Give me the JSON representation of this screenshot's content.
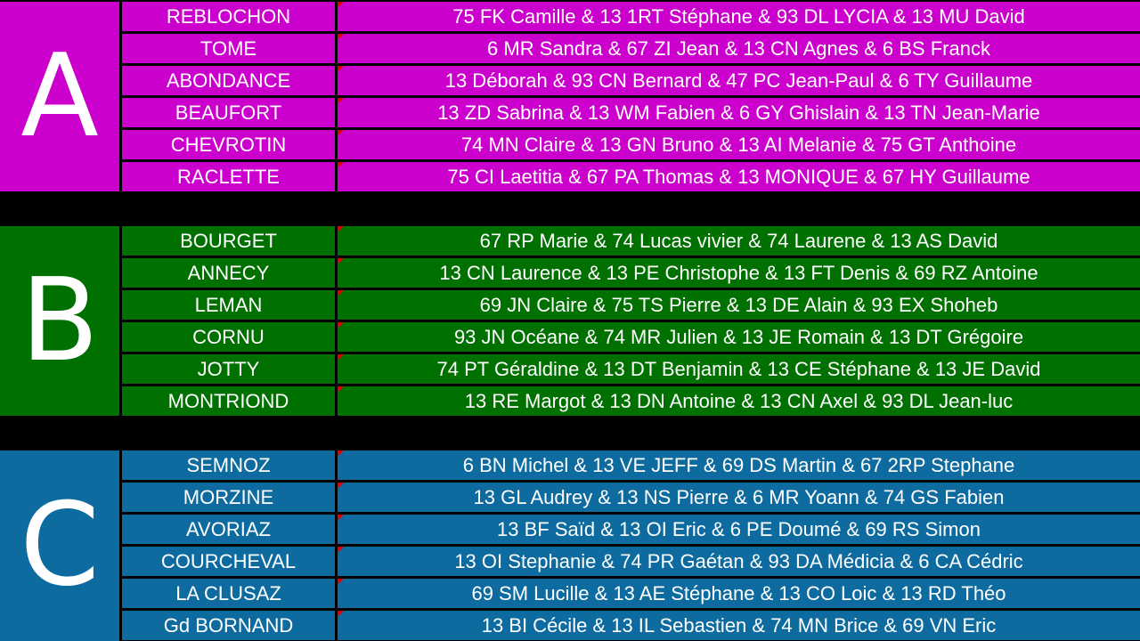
{
  "groups": [
    {
      "letter": "A",
      "color": "#cc00cc",
      "rows": [
        {
          "name": "REBLOCHON",
          "teams": "75 FK Camille & 13 1RT Stéphane & 93 DL LYCIA & 13 MU David"
        },
        {
          "name": "TOME",
          "teams": "6 MR Sandra & 67 ZI Jean & 13 CN Agnes & 6 BS Franck"
        },
        {
          "name": "ABONDANCE",
          "teams": "13 Déborah & 93 CN Bernard & 47 PC Jean-Paul & 6 TY Guillaume"
        },
        {
          "name": "BEAUFORT",
          "teams": "13 ZD Sabrina & 13 WM Fabien & 6 GY Ghislain & 13 TN Jean-Marie"
        },
        {
          "name": "CHEVROTIN",
          "teams": "74 MN Claire & 13 GN Bruno & 13 AI Melanie & 75 GT Anthoine"
        },
        {
          "name": "RACLETTE",
          "teams": "75 CI Laetitia & 67 PA Thomas & 13 MONIQUE & 67 HY Guillaume"
        }
      ]
    },
    {
      "letter": "B",
      "color": "#007000",
      "rows": [
        {
          "name": "BOURGET",
          "teams": "67 RP Marie & 74 Lucas vivier & 74 Laurene & 13 AS David"
        },
        {
          "name": "ANNECY",
          "teams": "13 CN Laurence & 13 PE Christophe & 13 FT Denis & 69 RZ Antoine"
        },
        {
          "name": "LEMAN",
          "teams": "69 JN Claire & 75 TS Pierre & 13 DE Alain & 93 EX Shoheb"
        },
        {
          "name": "CORNU",
          "teams": "93 JN Océane & 74 MR Julien & 13 JE Romain & 13 DT Grégoire"
        },
        {
          "name": "JOTTY",
          "teams": "74 PT Géraldine & 13 DT Benjamin & 13 CE Stéphane & 13 JE David"
        },
        {
          "name": "MONTRIOND",
          "teams": "13 RE Margot & 13 DN Antoine & 13 CN Axel & 93 DL Jean-luc"
        }
      ]
    },
    {
      "letter": "C",
      "color": "#0e6ba0",
      "rows": [
        {
          "name": "SEMNOZ",
          "teams": "6 BN Michel & 13 VE JEFF & 69 DS Martin & 67 2RP Stephane"
        },
        {
          "name": "MORZINE",
          "teams": "13 GL Audrey & 13 NS Pierre & 6 MR Yoann & 74 GS Fabien"
        },
        {
          "name": "AVORIAZ",
          "teams": "13 BF Saïd & 13 OI Eric & 6 PE Doumé & 69 RS Simon"
        },
        {
          "name": "COURCHEVAL",
          "teams": "13 OI  Stephanie & 74 PR Gaétan & 93 DA Médicia & 6 CA Cédric"
        },
        {
          "name": "LA CLUSAZ",
          "teams": "69 SM Lucille & 13 AE Stéphane & 13 CO Loic & 13 RD Théo"
        },
        {
          "name": "Gd BORNAND",
          "teams": "13 BI Cécile & 13 IL Sebastien & 74 MN Brice & 69 VN Eric"
        }
      ]
    }
  ],
  "colors": {
    "page_background": "#000000",
    "text": "#ffffff",
    "comment_marker": "#e00000"
  }
}
